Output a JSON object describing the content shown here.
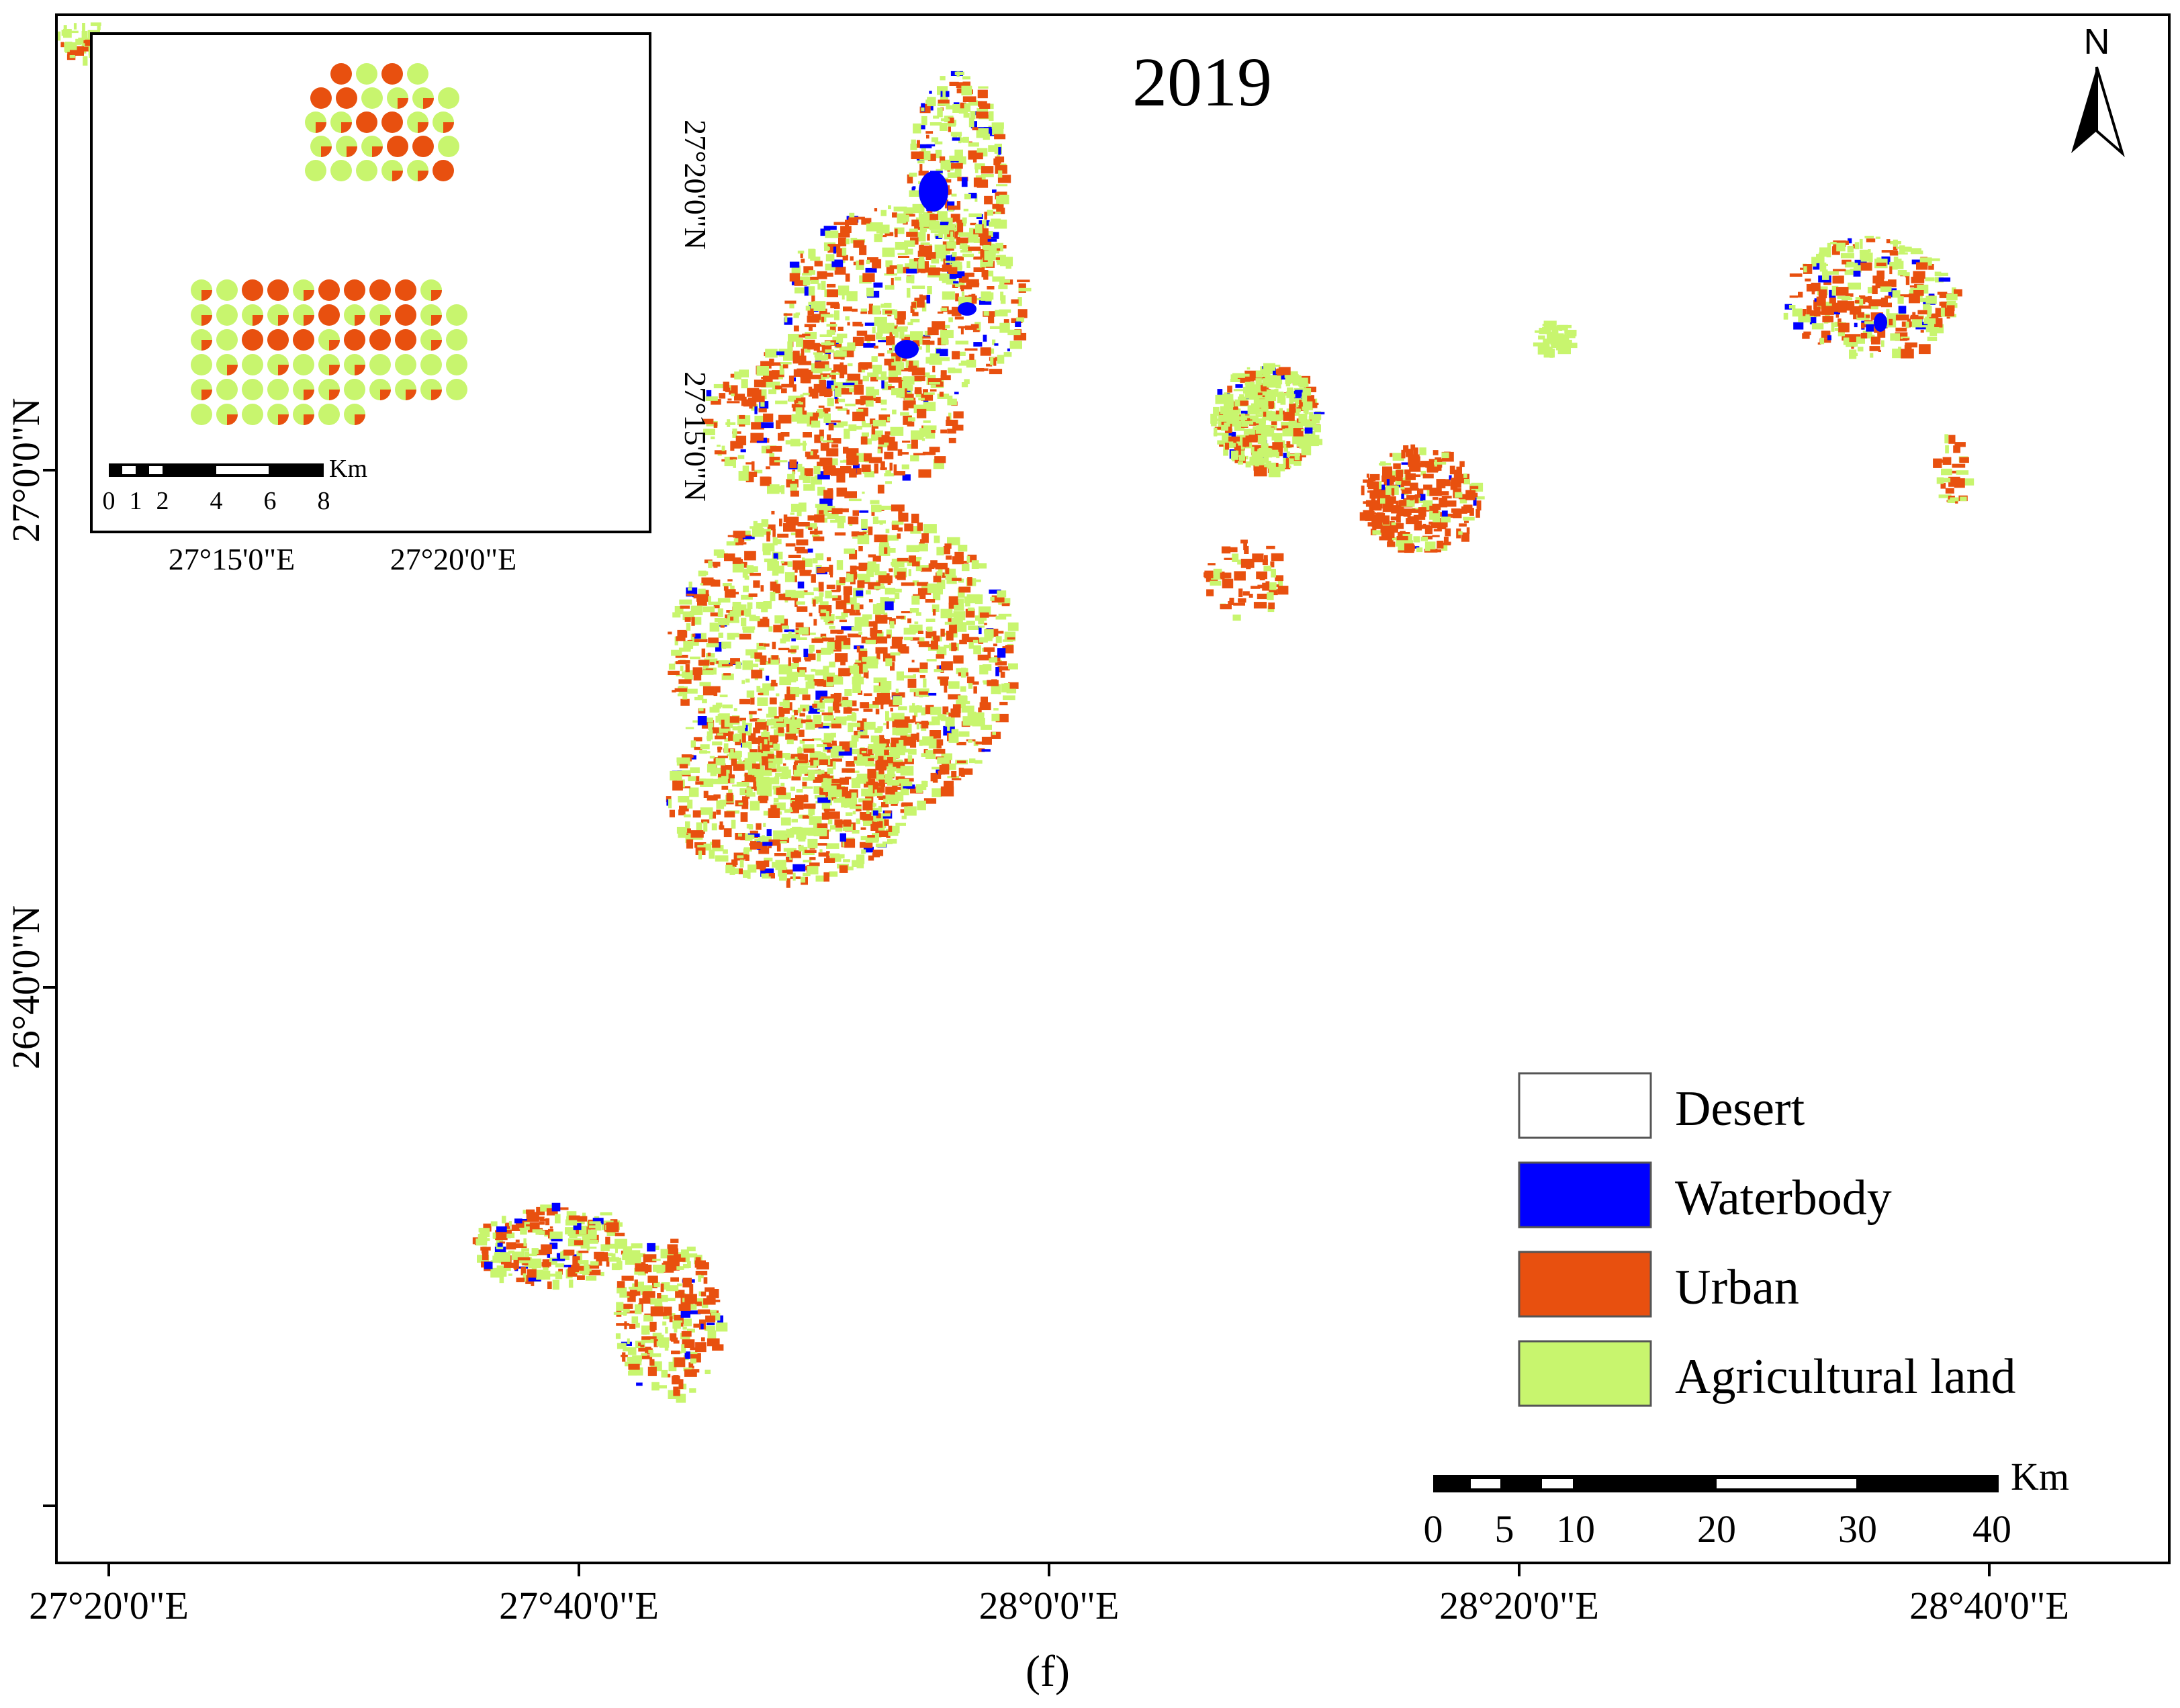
{
  "map": {
    "year": "2019",
    "caption": "(f)",
    "north_label": "N",
    "colors": {
      "desert": "#ffffff",
      "waterbody": "#0000ff",
      "urban": "#e8500f",
      "agricultural": "#c8f56e"
    }
  },
  "axes": {
    "x_ticks": [
      "27°20'0\"E",
      "27°40'0\"E",
      "28°0'0\"E",
      "28°20'0\"E",
      "28°40'0\"E"
    ],
    "y_ticks": [
      "27°0'0\"N",
      "26°40'0\"N"
    ]
  },
  "legend": [
    {
      "label": "Desert",
      "color": "#ffffff"
    },
    {
      "label": "Waterbody",
      "color": "#0000ff"
    },
    {
      "label": "Urban",
      "color": "#e8500f"
    },
    {
      "label": "Agricultural land",
      "color": "#c8f56e"
    }
  ],
  "scalebar": {
    "unit": "Km",
    "ticks": [
      "0",
      "5",
      "10",
      "20",
      "30",
      "40"
    ]
  },
  "inset": {
    "x_ticks": [
      "27°15'0\"E",
      "27°20'0\"E"
    ],
    "y_ticks": [
      "27°20'0\"N",
      "27°15'0\"N"
    ],
    "scalebar": {
      "unit": "Km",
      "ticks": [
        "0",
        "1",
        "2",
        "4",
        "6",
        "8"
      ]
    }
  }
}
